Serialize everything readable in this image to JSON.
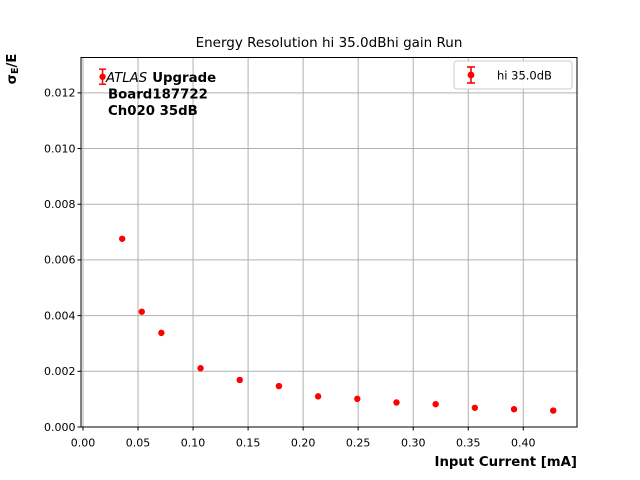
{
  "chart_data": {
    "type": "scatter",
    "title": "Energy Resolution hi 35.0dBhi gain Run",
    "xlabel": "Input Current [mA]",
    "ylabel": "σE/E",
    "ylabel_parts": {
      "sigma": "σ",
      "sub": "E",
      "rest": "/E"
    },
    "annotation": {
      "line1_italic": "ATLAS",
      "line1_bold": "Upgrade",
      "line2": "Board187722",
      "line3": "Ch020 35dB"
    },
    "legend": {
      "loc": "upper right"
    },
    "axes": {
      "xlim": [
        -0.0018,
        0.4488
      ],
      "ylim": [
        0,
        0.01327
      ],
      "xticks": [
        0.0,
        0.05,
        0.1,
        0.15,
        0.2,
        0.25,
        0.3,
        0.35,
        0.4
      ],
      "xtick_labels": [
        "0.00",
        "0.05",
        "0.10",
        "0.15",
        "0.20",
        "0.25",
        "0.30",
        "0.35",
        "0.40"
      ],
      "yticks": [
        0.0,
        0.002,
        0.004,
        0.006,
        0.008,
        0.01,
        0.012
      ],
      "ytick_labels": [
        "0.000",
        "0.002",
        "0.004",
        "0.006",
        "0.008",
        "0.010",
        "0.012"
      ],
      "grid": true,
      "grid_color": "#b0b0b0",
      "spine_color": "#000000"
    },
    "series": [
      {
        "name": "hi 35.0dB",
        "color": "#ff0000",
        "marker": "circle",
        "x": [
          0.0178,
          0.0356,
          0.0534,
          0.0712,
          0.1068,
          0.1424,
          0.178,
          0.2136,
          0.2492,
          0.2848,
          0.3204,
          0.356,
          0.3916,
          0.4272
        ],
        "y": [
          0.01258,
          0.00676,
          0.00414,
          0.00338,
          0.00211,
          0.00169,
          0.00147,
          0.0011,
          0.00101,
          0.00088,
          0.00082,
          0.00069,
          0.00064,
          0.00059
        ],
        "yerr": [
          0.00027,
          0,
          0,
          0,
          0,
          0,
          0,
          0,
          0,
          0,
          0,
          0,
          0,
          0
        ]
      }
    ]
  }
}
